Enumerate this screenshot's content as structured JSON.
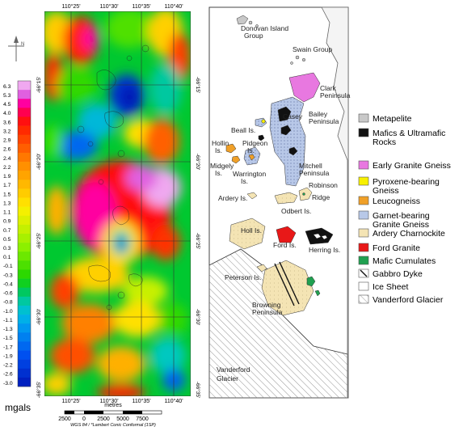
{
  "gravity_map": {
    "top_longitudes": [
      "110°25'",
      "110°30'",
      "110°35'",
      "110°40'"
    ],
    "bottom_longitudes": [
      "110°25'",
      "110°30'",
      "110°35'",
      "110°40'"
    ],
    "left_latitudes": [
      "-66°15'",
      "-66°20'",
      "-66°25'",
      "-66°30'",
      "-66°35'"
    ],
    "right_latitudes": [
      "-66°15'",
      "-66°20'",
      "-66°25'",
      "-66°30'",
      "-66°35'"
    ],
    "color_scale": {
      "unit": "mgals",
      "ticks": [
        "6.3",
        "5.3",
        "4.5",
        "4.0",
        "3.6",
        "3.2",
        "2.9",
        "2.6",
        "2.4",
        "2.2",
        "1.9",
        "1.7",
        "1.5",
        "1.3",
        "1.1",
        "0.9",
        "0.7",
        "0.5",
        "0.3",
        "0.1",
        "-0.1",
        "-0.3",
        "-0.4",
        "-0.6",
        "-0.8",
        "-1.0",
        "-1.1",
        "-1.3",
        "-1.5",
        "-1.7",
        "-1.9",
        "-2.2",
        "-2.6",
        "-3.0"
      ],
      "colors": [
        "#f0a8f0",
        "#e060e0",
        "#ff00a0",
        "#ff0050",
        "#ff1010",
        "#ff2a00",
        "#ff4400",
        "#ff5e00",
        "#ff7800",
        "#ff9000",
        "#ffa400",
        "#ffb800",
        "#ffcc00",
        "#ffe000",
        "#f4f000",
        "#ddf000",
        "#c4f000",
        "#a8f000",
        "#8cf000",
        "#6ce800",
        "#4ce000",
        "#2cd800",
        "#10d020",
        "#00c860",
        "#00c8a0",
        "#00c0d0",
        "#00b0e8",
        "#0098f0",
        "#0080f0",
        "#0068f0",
        "#0050f0",
        "#0040e0",
        "#0030d0",
        "#0020c0"
      ]
    },
    "scale_bar": {
      "ticks": [
        "2500",
        "0",
        "2500",
        "5000",
        "7500"
      ],
      "unit": "metres",
      "projection": "WGS 84 / *Lambert Conic Conformal (1SP)"
    },
    "north_label": "N"
  },
  "geology_map": {
    "place_labels": [
      "Donovan Island",
      "Group",
      "Swain Group",
      "Clark",
      "Peninsula",
      "Casey",
      "Beall Is.",
      "Bailey",
      "Peninsula",
      "Hollin",
      "Is.",
      "Pidgeon",
      "Is.",
      "Midgely",
      "Is.",
      "Warrington",
      "Is.",
      "Mitchell",
      "Peninsula",
      "Ardery Is.",
      "Robinson",
      "Ridge",
      "Odbert Is.",
      "Holl Is.",
      "Ford Is.",
      "Herring Is.",
      "Peterson Is.",
      "Browning",
      "Peninsula",
      "Vanderford",
      "Glacier"
    ],
    "legend": [
      {
        "label": "Metapelite",
        "color": "#c8c8c8"
      },
      {
        "label": "Mafics & Ultramafic",
        "label2": "Rocks",
        "color": "#111111"
      },
      {
        "label": "Early Granite Gneiss",
        "color": "#e878e0"
      },
      {
        "label": "Pyroxene-bearing",
        "label2": "Gneiss",
        "color": "#f8f000"
      },
      {
        "label": "Leucogneiss",
        "color": "#f0a028"
      },
      {
        "label": "Garnet-bearing",
        "label2": "Granite Gneiss",
        "color": "#b8c8e8"
      },
      {
        "label": "Ardery Charnockite",
        "color": "#f4e4b4"
      },
      {
        "label": "Ford Granite",
        "color": "#e81818"
      },
      {
        "label": "Mafic Cumulates",
        "color": "#20a050"
      },
      {
        "label": "Gabbro Dyke",
        "color": "dyke"
      },
      {
        "label": "Ice Sheet",
        "color": "#ffffff"
      },
      {
        "label": "Vanderford Glacier",
        "color": "hatch"
      }
    ]
  }
}
